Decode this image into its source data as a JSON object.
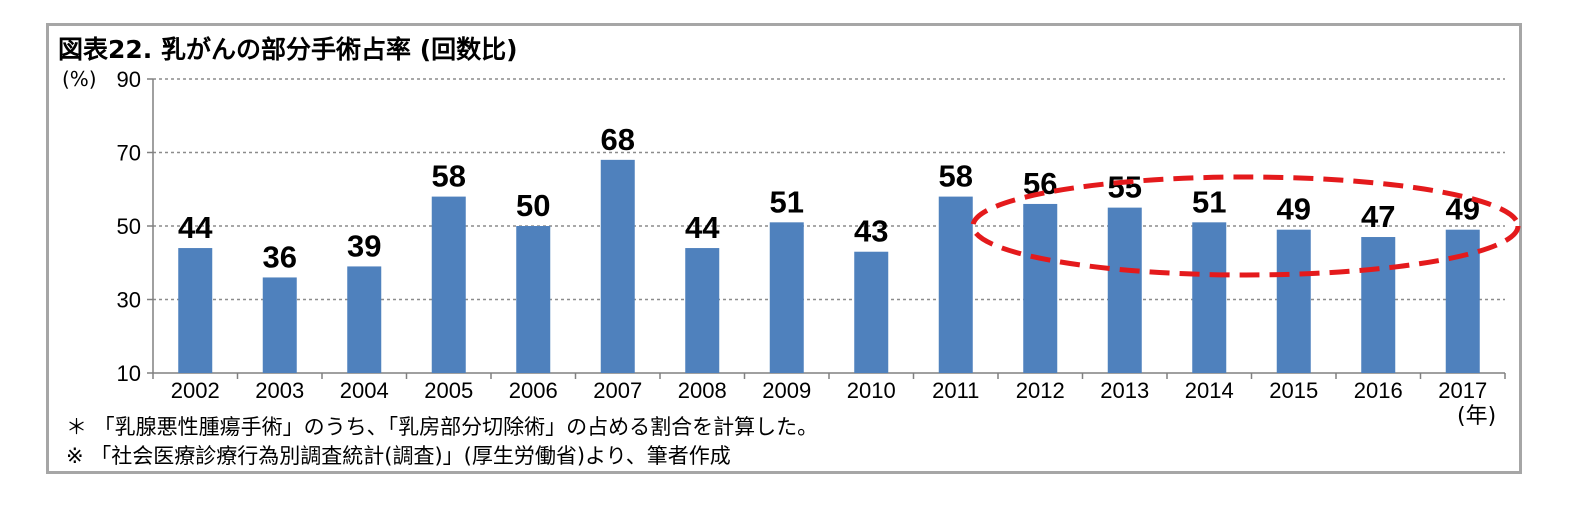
{
  "title": "図表22. 乳がんの部分手術占率 (回数比)",
  "y_unit": "(%)",
  "x_unit": "(年)",
  "notes": [
    "＊ 「乳腺悪性腫瘍手術」のうち、「乳房部分切除術」の占める割合を計算した。",
    "※ 「社会医療診療行為別調査統計(調査)」(厚生労働省)より、筆者作成"
  ],
  "chart_data": {
    "type": "bar",
    "categories": [
      "2002",
      "2003",
      "2004",
      "2005",
      "2006",
      "2007",
      "2008",
      "2009",
      "2010",
      "2011",
      "2012",
      "2013",
      "2014",
      "2015",
      "2016",
      "2017"
    ],
    "values": [
      44,
      36,
      39,
      58,
      50,
      68,
      44,
      51,
      43,
      58,
      56,
      55,
      51,
      49,
      47,
      49
    ],
    "ylim": [
      10,
      90
    ],
    "yticks": [
      10,
      30,
      50,
      70,
      90
    ],
    "grid": true,
    "bar_color": "#4f81bd",
    "highlight": {
      "shape": "dashed-ellipse",
      "color": "#e41a1c",
      "from_category": "2012",
      "to_category": "2017"
    }
  }
}
